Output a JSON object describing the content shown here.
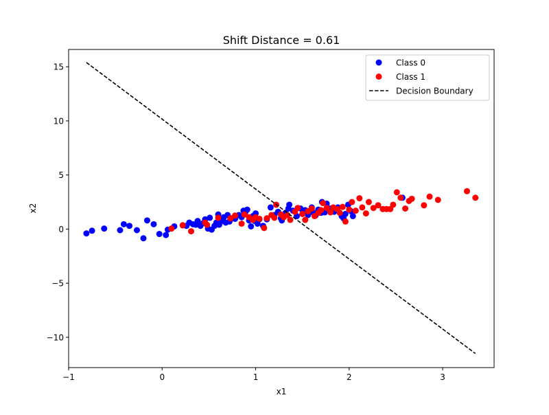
{
  "chart_data": {
    "type": "scatter",
    "title": "Shift Distance = 0.61",
    "xlabel": "x1",
    "ylabel": "x2",
    "xlim": [
      -1.0,
      3.55
    ],
    "ylim": [
      -12.8,
      16.6
    ],
    "xticks": [
      -1,
      0,
      1,
      2,
      3
    ],
    "xtick_labels": [
      "−1",
      "0",
      "1",
      "2",
      "3"
    ],
    "yticks": [
      -10,
      -5,
      0,
      5,
      10,
      15
    ],
    "ytick_labels": [
      "−10",
      "−5",
      "0",
      "5",
      "10",
      "15"
    ],
    "grid": false,
    "legend_position": "top-right",
    "series": [
      {
        "name": "Class 0",
        "color": "#0000ff",
        "points": [
          [
            -0.81,
            -0.4
          ],
          [
            -0.75,
            -0.15
          ],
          [
            -0.62,
            0.05
          ],
          [
            -0.45,
            -0.1
          ],
          [
            -0.41,
            0.45
          ],
          [
            -0.35,
            0.3
          ],
          [
            -0.27,
            -0.1
          ],
          [
            -0.2,
            -0.85
          ],
          [
            -0.16,
            0.8
          ],
          [
            -0.09,
            0.45
          ],
          [
            -0.03,
            -0.45
          ],
          [
            0.04,
            -0.55
          ],
          [
            0.06,
            -0.05
          ],
          [
            0.13,
            0.25
          ],
          [
            0.22,
            0.35
          ],
          [
            0.26,
            0.3
          ],
          [
            0.29,
            0.6
          ],
          [
            0.33,
            0.45
          ],
          [
            0.36,
            0.4
          ],
          [
            0.38,
            0.75
          ],
          [
            0.41,
            0.3
          ],
          [
            0.44,
            0.55
          ],
          [
            0.46,
            0.9
          ],
          [
            0.49,
            0.05
          ],
          [
            0.51,
            1.05
          ],
          [
            0.53,
            -0.05
          ],
          [
            0.56,
            0.3
          ],
          [
            0.58,
            0.6
          ],
          [
            0.6,
            1.35
          ],
          [
            0.61,
            0.4
          ],
          [
            0.64,
            0.75
          ],
          [
            0.66,
            1.1
          ],
          [
            0.68,
            0.6
          ],
          [
            0.7,
            1.3
          ],
          [
            0.72,
            0.7
          ],
          [
            0.75,
            1.0
          ],
          [
            0.78,
            0.95
          ],
          [
            0.82,
            1.3
          ],
          [
            0.85,
            1.1
          ],
          [
            0.87,
            1.7
          ],
          [
            0.89,
            1.55
          ],
          [
            0.91,
            1.8
          ],
          [
            0.93,
            0.8
          ],
          [
            0.95,
            0.25
          ],
          [
            0.97,
            1.2
          ],
          [
            0.99,
            0.75
          ],
          [
            1.0,
            1.45
          ],
          [
            1.02,
            0.5
          ],
          [
            1.04,
            0.9
          ],
          [
            1.08,
            0.3
          ],
          [
            1.12,
            0.9
          ],
          [
            1.16,
            2.0
          ],
          [
            1.2,
            1.3
          ],
          [
            1.24,
            1.6
          ],
          [
            1.27,
            1.0
          ],
          [
            1.28,
            0.8
          ],
          [
            1.32,
            1.5
          ],
          [
            1.35,
            1.9
          ],
          [
            1.36,
            2.25
          ],
          [
            1.4,
            1.7
          ],
          [
            1.44,
            1.2
          ],
          [
            1.48,
            1.9
          ],
          [
            1.5,
            1.4
          ],
          [
            1.53,
            1.75
          ],
          [
            1.56,
            1.3
          ],
          [
            1.6,
            2.0
          ],
          [
            1.62,
            1.5
          ],
          [
            1.64,
            1.25
          ],
          [
            1.67,
            1.8
          ],
          [
            1.7,
            1.5
          ],
          [
            1.71,
            2.5
          ],
          [
            1.74,
            1.55
          ],
          [
            1.76,
            2.35
          ],
          [
            1.8,
            1.9
          ],
          [
            1.84,
            1.6
          ],
          [
            1.88,
            2.0
          ],
          [
            1.92,
            1.2
          ],
          [
            1.94,
            1.0
          ],
          [
            1.96,
            1.4
          ],
          [
            1.99,
            2.25
          ],
          [
            2.02,
            1.65
          ],
          [
            2.04,
            1.2
          ],
          [
            2.57,
            2.9
          ]
        ]
      },
      {
        "name": "Class 1",
        "color": "#ff0000",
        "points": [
          [
            0.1,
            0.05
          ],
          [
            0.22,
            0.35
          ],
          [
            0.31,
            -0.2
          ],
          [
            0.46,
            0.6
          ],
          [
            0.48,
            0.4
          ],
          [
            0.6,
            1.05
          ],
          [
            0.73,
            1.0
          ],
          [
            0.78,
            1.25
          ],
          [
            0.85,
            0.5
          ],
          [
            0.88,
            1.35
          ],
          [
            0.93,
            1.1
          ],
          [
            0.97,
            0.85
          ],
          [
            1.0,
            1.1
          ],
          [
            1.04,
            0.95
          ],
          [
            1.09,
            0.1
          ],
          [
            1.12,
            1.0
          ],
          [
            1.17,
            1.3
          ],
          [
            1.2,
            1.05
          ],
          [
            1.22,
            2.25
          ],
          [
            1.27,
            1.35
          ],
          [
            1.3,
            1.1
          ],
          [
            1.34,
            1.3
          ],
          [
            1.37,
            0.85
          ],
          [
            1.42,
            1.6
          ],
          [
            1.45,
            1.95
          ],
          [
            1.5,
            1.4
          ],
          [
            1.53,
            0.85
          ],
          [
            1.56,
            1.65
          ],
          [
            1.6,
            1.9
          ],
          [
            1.63,
            1.2
          ],
          [
            1.67,
            1.5
          ],
          [
            1.7,
            1.75
          ],
          [
            1.72,
            2.4
          ],
          [
            1.76,
            1.95
          ],
          [
            1.8,
            1.55
          ],
          [
            1.83,
            2.0
          ],
          [
            1.87,
            1.85
          ],
          [
            1.9,
            1.5
          ],
          [
            1.93,
            2.05
          ],
          [
            1.96,
            0.7
          ],
          [
            2.0,
            1.8
          ],
          [
            2.03,
            2.5
          ],
          [
            2.07,
            1.7
          ],
          [
            2.11,
            2.85
          ],
          [
            2.14,
            2.0
          ],
          [
            2.18,
            1.45
          ],
          [
            2.21,
            2.5
          ],
          [
            2.26,
            1.95
          ],
          [
            2.31,
            2.2
          ],
          [
            2.36,
            1.85
          ],
          [
            2.4,
            1.85
          ],
          [
            2.44,
            1.85
          ],
          [
            2.47,
            2.25
          ],
          [
            2.51,
            3.4
          ],
          [
            2.55,
            2.9
          ],
          [
            2.6,
            1.9
          ],
          [
            2.64,
            2.6
          ],
          [
            2.67,
            2.8
          ],
          [
            2.8,
            2.2
          ],
          [
            2.86,
            3.0
          ],
          [
            2.95,
            2.7
          ],
          [
            3.26,
            3.5
          ],
          [
            3.35,
            2.9
          ]
        ]
      },
      {
        "name": "Decision Boundary",
        "color": "#000000",
        "line": [
          [
            -0.81,
            15.4
          ],
          [
            3.35,
            -11.5
          ]
        ]
      }
    ]
  }
}
